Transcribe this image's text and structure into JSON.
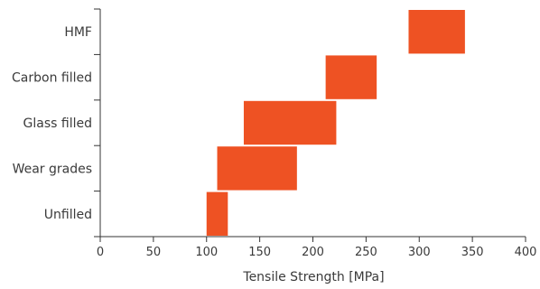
{
  "chart_data": {
    "type": "bar",
    "orientation": "horizontal-range",
    "title": "",
    "xlabel": "Tensile Strength [MPa]",
    "ylabel": "",
    "xlim": [
      0,
      400
    ],
    "xticks": [
      0,
      50,
      100,
      150,
      200,
      250,
      300,
      350,
      400
    ],
    "categories": [
      "Unfilled",
      "Wear grades",
      "Glass filled",
      "Carbon filled",
      "HMF"
    ],
    "bar_color": "#ee5223",
    "grid": false,
    "legend": "none",
    "series": [
      {
        "values": [
          [
            [
              100,
              120
            ]
          ],
          [
            [
              110,
              185
            ]
          ],
          [
            [
              135,
              222
            ]
          ],
          [
            [
              212,
              260
            ]
          ],
          [
            [
              290,
              343
            ]
          ]
        ]
      }
    ]
  }
}
